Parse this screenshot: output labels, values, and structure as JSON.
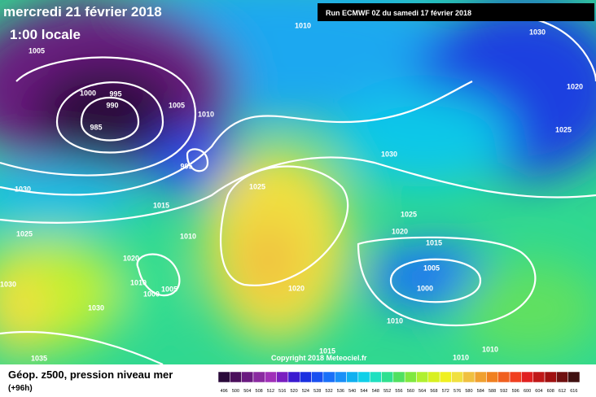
{
  "header": {
    "title": "mercredi 21 février 2018",
    "time": "1:00 locale",
    "run": "Run ECMWF 0Z du samedi 17 février 2018"
  },
  "isobar_labels": [
    1010,
    1030,
    1005,
    1000,
    995,
    990,
    985,
    1005,
    1010,
    1020,
    1025,
    1030,
    995,
    1030,
    1025,
    1015,
    1025,
    1025,
    1010,
    1020,
    1015,
    1020,
    1005,
    1010,
    1005,
    1000,
    1030,
    1020,
    1000,
    1030,
    1010,
    1010,
    1015,
    1010,
    1035
  ],
  "copyright": "Copyright 2018 Meteociel.fr",
  "legend": {
    "title": "Géop. z500, pression niveau mer",
    "lead": "(+96h)",
    "scale": [
      496,
      500,
      504,
      508,
      512,
      516,
      520,
      524,
      528,
      532,
      536,
      540,
      544,
      548,
      552,
      556,
      560,
      564,
      568,
      572,
      576,
      580,
      584,
      588,
      592,
      596,
      600,
      604,
      608,
      612,
      616
    ],
    "colors": [
      "#2a0a3a",
      "#4b0f5c",
      "#6a1a80",
      "#8a2aa0",
      "#a030b8",
      "#7a1ec0",
      "#3a1ad0",
      "#1a30e0",
      "#1a50f0",
      "#1a70f8",
      "#1a90f8",
      "#10b0f0",
      "#10d0e8",
      "#20e0c0",
      "#30e090",
      "#50e060",
      "#80e840",
      "#b0f030",
      "#d8f020",
      "#f0f020",
      "#f0e040",
      "#f0c040",
      "#f0a030",
      "#f08020",
      "#f06020",
      "#f04020",
      "#e02020",
      "#c01818",
      "#a01010",
      "#701010",
      "#401010"
    ]
  }
}
